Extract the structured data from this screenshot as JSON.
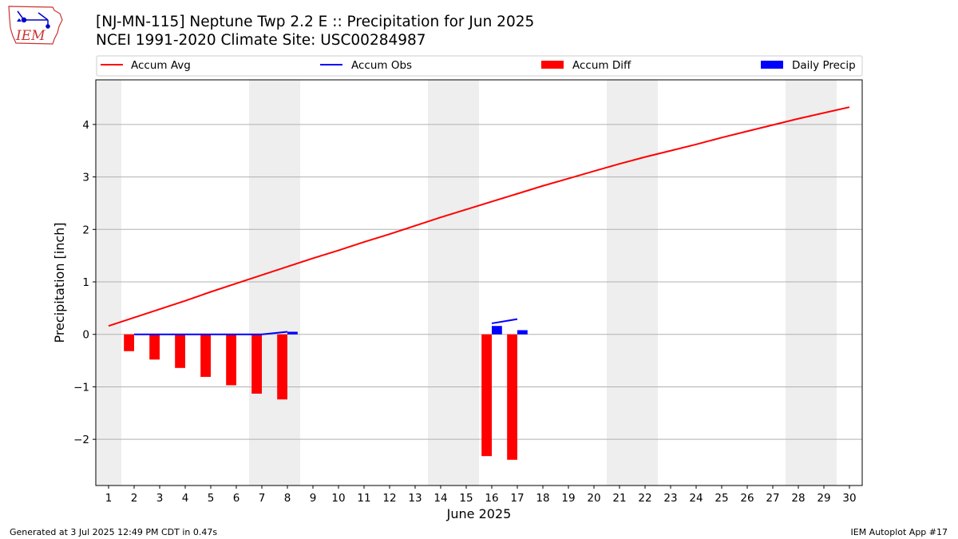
{
  "title_line1": "[NJ-MN-115] Neptune Twp 2.2 E :: Precipitation for Jun 2025",
  "title_line2": "NCEI 1991-2020 Climate Site: USC00284987",
  "footer_left": "Generated at 3 Jul 2025 12:49 PM CDT in 0.47s",
  "footer_right": "IEM Autoplot App #17",
  "logo_text": "IEM",
  "colors": {
    "avg": "#ff0000",
    "obs": "#0000ff",
    "diff": "#ff0000",
    "daily": "#0000ff",
    "weekend_band": "#eeeeee",
    "grid": "#b0b0b0"
  },
  "chart_data": {
    "type": "line",
    "xlabel": "June 2025",
    "ylabel": "Precipitation [inch]",
    "xlim": [
      0.5,
      30.5
    ],
    "ylim": [
      -2.88,
      4.85
    ],
    "x_ticks": [
      1,
      2,
      3,
      4,
      5,
      6,
      7,
      8,
      9,
      10,
      11,
      12,
      13,
      14,
      15,
      16,
      17,
      18,
      19,
      20,
      21,
      22,
      23,
      24,
      25,
      26,
      27,
      28,
      29,
      30
    ],
    "y_ticks": [
      -2,
      -1,
      0,
      1,
      2,
      3,
      4
    ],
    "y_tick_labels": [
      "−2",
      "−1",
      "0",
      "1",
      "2",
      "3",
      "4"
    ],
    "grid": "horizontal",
    "legend_position": "top, above plot",
    "weekend_bands": [
      [
        0.5,
        1.5
      ],
      [
        6.5,
        8.5
      ],
      [
        13.5,
        15.5
      ],
      [
        20.5,
        22.5
      ],
      [
        27.5,
        29.5
      ]
    ],
    "series": [
      {
        "name": "Accum Avg",
        "kind": "line",
        "x": [
          1,
          2,
          3,
          4,
          5,
          6,
          7,
          8,
          9,
          10,
          11,
          12,
          13,
          14,
          15,
          16,
          17,
          18,
          19,
          20,
          21,
          22,
          23,
          24,
          25,
          26,
          27,
          28,
          29,
          30
        ],
        "values": [
          0.16,
          0.32,
          0.48,
          0.64,
          0.81,
          0.97,
          1.13,
          1.29,
          1.45,
          1.6,
          1.76,
          1.91,
          2.07,
          2.23,
          2.38,
          2.53,
          2.68,
          2.83,
          2.97,
          3.11,
          3.25,
          3.38,
          3.5,
          3.62,
          3.75,
          3.87,
          3.99,
          4.11,
          4.22,
          4.33
        ]
      },
      {
        "name": "Accum Obs",
        "kind": "line",
        "segments": [
          {
            "x": [
              2,
              3,
              4,
              5,
              6,
              7,
              8
            ],
            "values": [
              0,
              0,
              0,
              0,
              0,
              0,
              0.05
            ]
          },
          {
            "x": [
              16,
              17
            ],
            "values": [
              0.21,
              0.29
            ]
          }
        ]
      },
      {
        "name": "Accum Diff",
        "kind": "bar",
        "x": [
          1.8,
          2.8,
          3.8,
          4.8,
          5.8,
          6.8,
          7.8,
          15.8,
          16.8
        ],
        "values": [
          -0.32,
          -0.48,
          -0.64,
          -0.81,
          -0.97,
          -1.13,
          -1.24,
          -2.32,
          -2.39
        ]
      },
      {
        "name": "Daily Precip",
        "kind": "bar",
        "x": [
          8.2,
          16.2,
          17.2
        ],
        "values": [
          0.05,
          0.16,
          0.08
        ]
      }
    ]
  }
}
